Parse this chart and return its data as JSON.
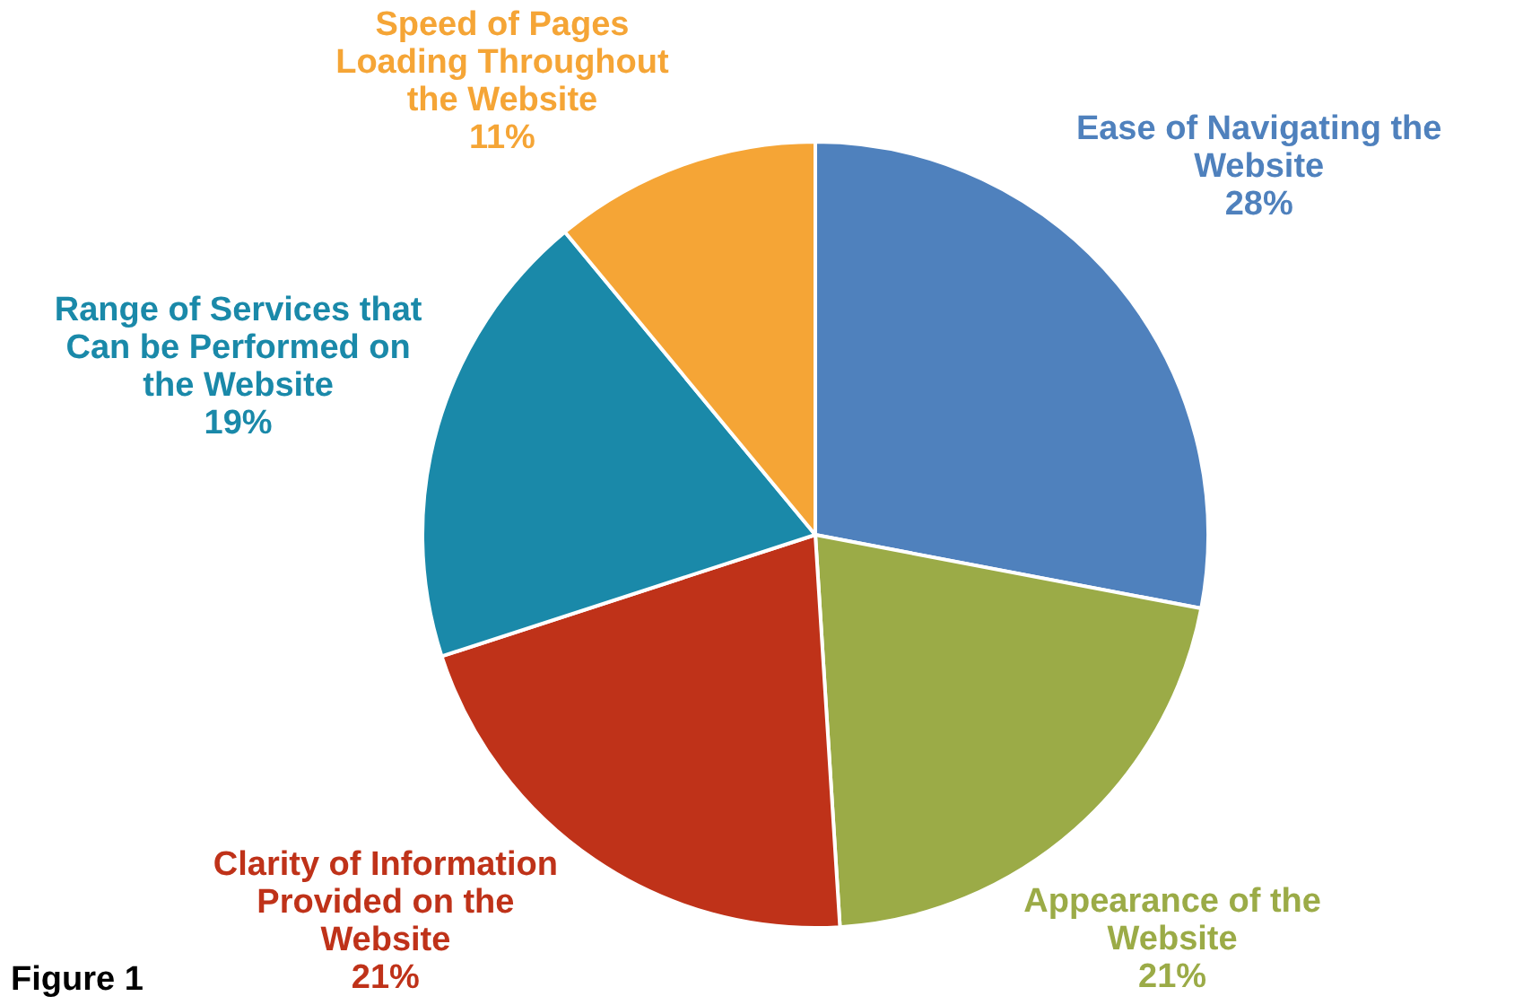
{
  "chart_data": {
    "type": "pie",
    "categories": [
      "Ease of Navigating the Website",
      "Appearance of the Website",
      "Clarity of Information Provided on the Website",
      "Range of Services that Can be Performed on the Website",
      "Speed of Pages Loading Throughout the Website"
    ],
    "values": [
      28,
      21,
      21,
      19,
      11
    ],
    "colors": [
      "#4f81bd",
      "#9bab47",
      "#bf3219",
      "#1a89a9",
      "#f5a536"
    ],
    "value_labels": [
      "28%",
      "21%",
      "21%",
      "19%",
      "11%"
    ],
    "annotations": [
      "Figure 1"
    ],
    "legend": false
  }
}
